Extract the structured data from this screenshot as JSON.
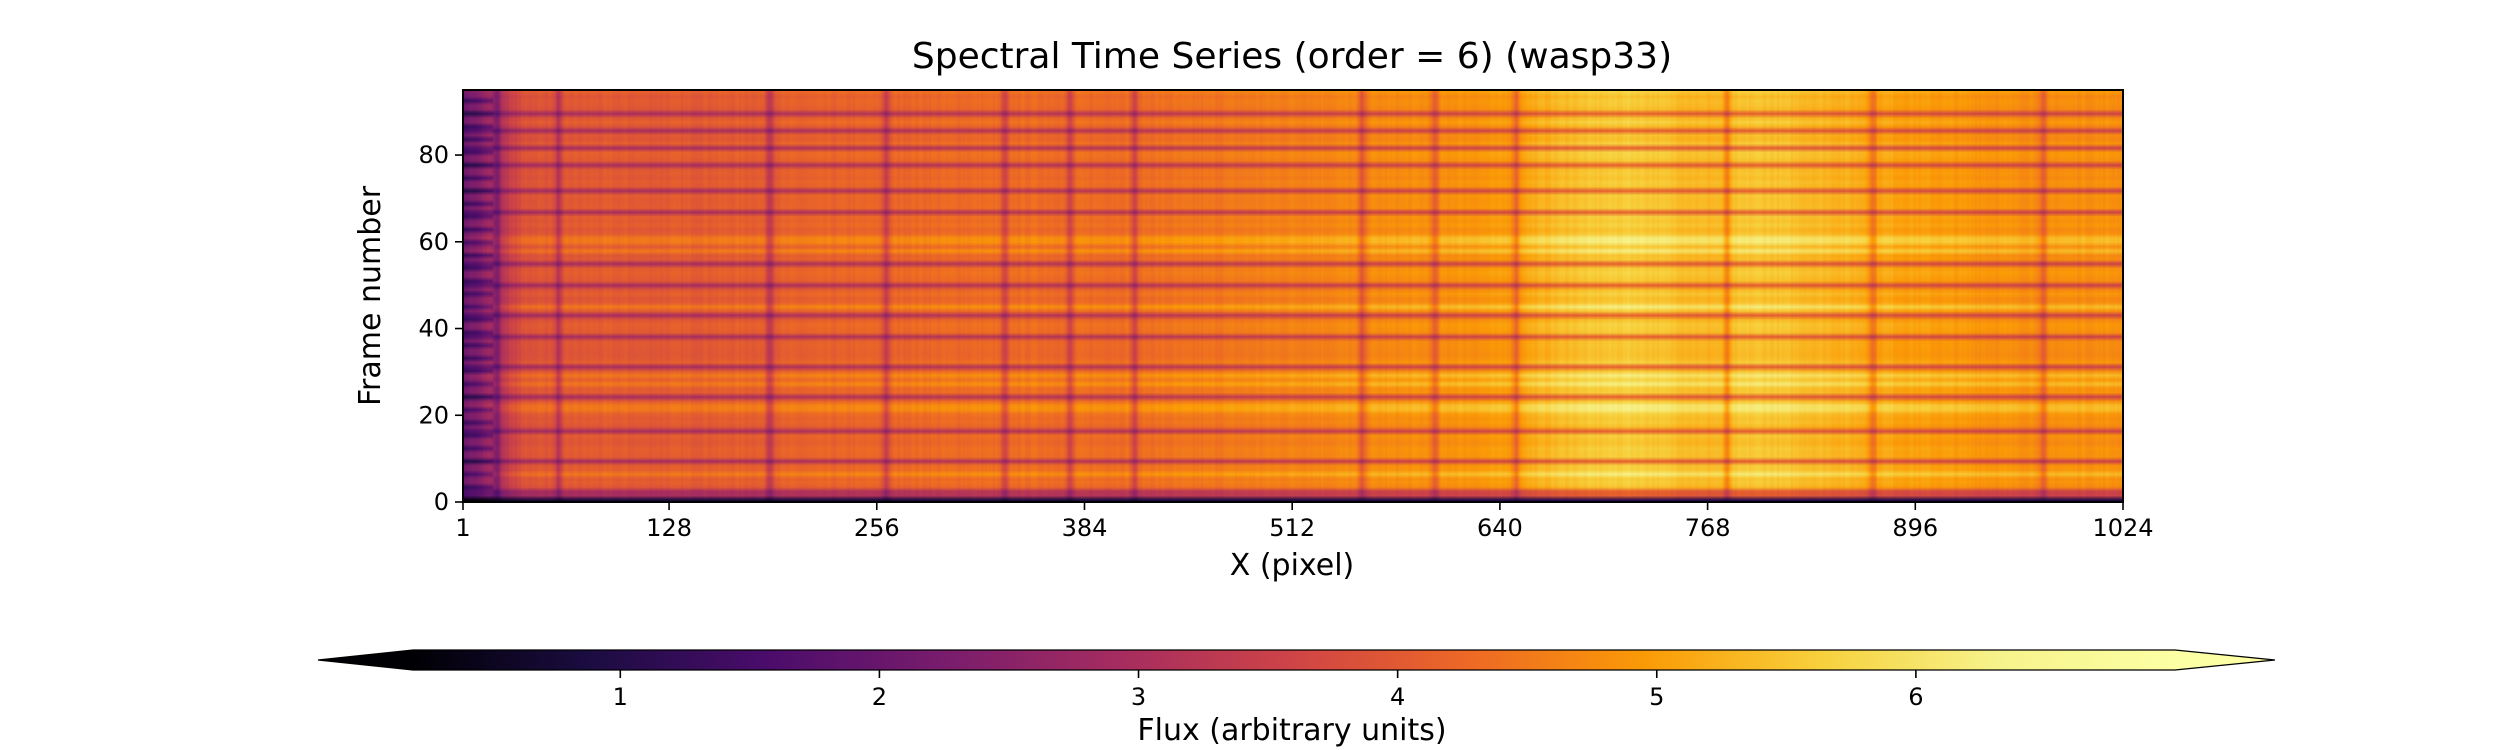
{
  "chart_data": {
    "type": "heatmap",
    "title": "Spectral Time Series (order = 6) (wasp33)",
    "xlabel": "X (pixel)",
    "ylabel": "Frame number",
    "xlim": [
      1,
      1024
    ],
    "ylim": [
      0,
      95
    ],
    "xticks": [
      1,
      128,
      256,
      384,
      512,
      640,
      768,
      896,
      1024
    ],
    "yticks": [
      0,
      20,
      40,
      60,
      80
    ],
    "colormap": "inferno",
    "colorbar": {
      "label": "Flux (arbitrary units)",
      "range": [
        0.2,
        7.0
      ],
      "ticks": [
        1,
        2,
        3,
        4,
        5,
        6
      ],
      "orientation": "horizontal",
      "extend": "both"
    },
    "continuum_profile": {
      "x": [
        1,
        20,
        40,
        80,
        128,
        200,
        256,
        320,
        384,
        450,
        512,
        560,
        600,
        640,
        680,
        720,
        768,
        800,
        840,
        896,
        960,
        1024
      ],
      "flux": [
        2.0,
        3.0,
        3.9,
        4.0,
        4.0,
        4.1,
        4.2,
        4.3,
        4.3,
        4.4,
        4.6,
        4.7,
        4.8,
        4.9,
        5.4,
        5.6,
        5.3,
        5.5,
        5.3,
        5.0,
        4.8,
        4.8
      ]
    },
    "absorption_lines_x": [
      22,
      60,
      190,
      262,
      335,
      375,
      415,
      555,
      600,
      650,
      780,
      870,
      975
    ],
    "faint_frames": [
      0,
      1,
      2,
      9,
      16,
      24,
      31,
      38,
      43,
      50,
      55,
      67,
      72,
      78,
      82,
      86,
      90
    ],
    "bright_frames": [
      6,
      21,
      22,
      27,
      29,
      45,
      58,
      60,
      61
    ]
  }
}
